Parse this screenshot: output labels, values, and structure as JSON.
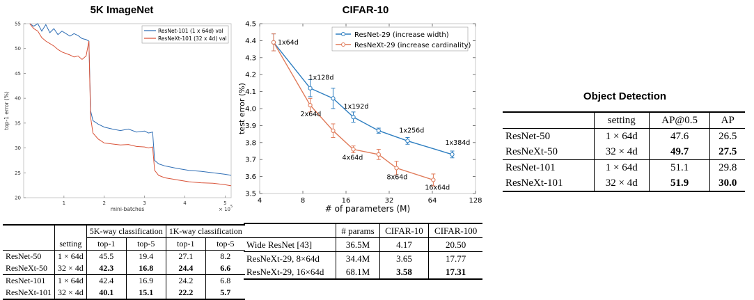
{
  "titles": {
    "left": "5K ImageNet",
    "middle": "CIFAR-10",
    "right": "Object Detection"
  },
  "chart_data": [
    {
      "type": "line",
      "title": "5K ImageNet",
      "xlabel": "mini-batches",
      "ylabel": "top-1 error (%)",
      "x_multiplier": "× 10^5",
      "x_multiplier_base": "× 10",
      "x_multiplier_exp": "5",
      "xlim": [
        0,
        5.15
      ],
      "ylim": [
        20,
        55
      ],
      "xticks": [
        1,
        2,
        3,
        4,
        5
      ],
      "yticks": [
        20,
        25,
        30,
        35,
        40,
        45,
        50,
        55
      ],
      "legend_position": "top-right",
      "series": [
        {
          "name": "ResNet-101 (1 x 64d) val",
          "color": "#2f6eb5",
          "x": [
            0.15,
            0.25,
            0.35,
            0.45,
            0.55,
            0.65,
            0.75,
            0.85,
            0.95,
            1.05,
            1.15,
            1.25,
            1.35,
            1.45,
            1.55,
            1.62,
            1.66,
            1.72,
            1.85,
            2.0,
            2.2,
            2.4,
            2.6,
            2.8,
            3.0,
            3.1,
            3.2,
            3.25,
            3.35,
            3.5,
            3.8,
            4.1,
            4.4,
            4.7,
            5.0,
            5.15
          ],
          "y": [
            55.5,
            54.5,
            55.2,
            53.5,
            54.8,
            53.2,
            54,
            52.8,
            53.5,
            53,
            52.5,
            53,
            52.6,
            52,
            51.8,
            51.5,
            37.5,
            35.5,
            34.8,
            34.2,
            33.8,
            33.5,
            33.8,
            33.2,
            33.4,
            33,
            33.2,
            27.5,
            26.8,
            26.4,
            25.9,
            25.5,
            25.3,
            25.0,
            24.7,
            24.5
          ]
        },
        {
          "name": "ResNeXt-101 (32 x 4d) val",
          "color": "#d9543a",
          "x": [
            0.15,
            0.25,
            0.35,
            0.45,
            0.55,
            0.65,
            0.75,
            0.85,
            0.95,
            1.05,
            1.15,
            1.25,
            1.35,
            1.45,
            1.55,
            1.62,
            1.66,
            1.72,
            1.85,
            2.0,
            2.2,
            2.4,
            2.6,
            2.8,
            3.0,
            3.1,
            3.2,
            3.25,
            3.35,
            3.5,
            3.8,
            4.1,
            4.4,
            4.7,
            5.0,
            5.15
          ],
          "y": [
            55.5,
            54,
            53.5,
            52.2,
            51.5,
            51,
            50.5,
            49.8,
            49.3,
            49,
            48.7,
            48.3,
            48.5,
            47.8,
            48.5,
            51.5,
            36.2,
            33,
            31.8,
            31,
            30.8,
            30.6,
            30.7,
            30.3,
            30.2,
            30,
            30.2,
            25.5,
            24.5,
            24,
            23.6,
            23.2,
            23,
            22.9,
            22.6,
            22.4
          ]
        }
      ]
    },
    {
      "type": "line",
      "title": "CIFAR-10",
      "xlabel": "# of parameters (M)",
      "ylabel": "test error (%)",
      "x_scale": "log2",
      "xlim": [
        4,
        128
      ],
      "ylim": [
        3.5,
        4.5
      ],
      "xticks": [
        4,
        8,
        16,
        32,
        64,
        128
      ],
      "yticks": [
        3.5,
        3.6,
        3.7,
        3.8,
        3.9,
        4.0,
        4.1,
        4.2,
        4.3,
        4.4,
        4.5
      ],
      "legend_position": "top-right",
      "series": [
        {
          "name": "ResNet-29 (increase width)",
          "color": "#2f7fc1",
          "x": [
            5.0,
            9.0,
            13.0,
            18.0,
            27.0,
            43.0,
            88.0
          ],
          "y": [
            4.39,
            4.12,
            4.06,
            3.95,
            3.87,
            3.81,
            3.73
          ],
          "err": [
            0.05,
            0.05,
            0.06,
            0.03,
            0.015,
            0.02,
            0.02
          ],
          "labels": [
            "1x64d",
            "1x128d",
            "",
            "1x192d",
            "",
            "1x256d",
            "1x384d"
          ]
        },
        {
          "name": "ResNeXt-29 (increase cardinality)",
          "color": "#e07b5a",
          "x": [
            5.0,
            9.0,
            13.0,
            18.0,
            27.0,
            36.0,
            65.0
          ],
          "y": [
            4.39,
            4.02,
            3.87,
            3.76,
            3.73,
            3.65,
            3.58
          ],
          "err": [
            0.05,
            0.04,
            0.04,
            0.02,
            0.03,
            0.04,
            0.035
          ],
          "labels": [
            "",
            "2x64d",
            "",
            "4x64d",
            "",
            "8x64d",
            "16x64d"
          ]
        }
      ]
    }
  ],
  "table1": {
    "group1": "5K-way classification",
    "group2": "1K-way classification",
    "setting": "setting",
    "subheaders": [
      "top-1",
      "top-5",
      "top-1",
      "top-5"
    ],
    "rows": [
      [
        "ResNet-50",
        "1 × 64d",
        "45.5",
        "19.4",
        "27.1",
        "8.2"
      ],
      [
        "ResNeXt-50",
        "32 × 4d",
        "42.3",
        "16.8",
        "24.4",
        "6.6"
      ],
      [
        "ResNet-101",
        "1 × 64d",
        "42.4",
        "16.9",
        "24.2",
        "6.8"
      ],
      [
        "ResNeXt-101",
        "32 × 4d",
        "40.1",
        "15.1",
        "22.2",
        "5.7"
      ]
    ]
  },
  "table2": {
    "headers": [
      "",
      "# params",
      "CIFAR-10",
      "CIFAR-100"
    ],
    "rows": [
      [
        "Wide ResNet [43]",
        "36.5M",
        "4.17",
        "20.50"
      ],
      [
        "ResNeXt-29, 8×64d",
        "34.4M",
        "3.65",
        "17.77"
      ],
      [
        "ResNeXt-29, 16×64d",
        "68.1M",
        "3.58",
        "17.31"
      ]
    ]
  },
  "table3": {
    "headers": [
      "",
      "setting",
      "AP@0.5",
      "AP"
    ],
    "rows": [
      [
        "ResNet-50",
        "1 × 64d",
        "47.6",
        "26.5"
      ],
      [
        "ResNeXt-50",
        "32 × 4d",
        "49.7",
        "27.5"
      ],
      [
        "ResNet-101",
        "1 × 64d",
        "51.1",
        "29.8"
      ],
      [
        "ResNeXt-101",
        "32 × 4d",
        "51.9",
        "30.0"
      ]
    ]
  }
}
